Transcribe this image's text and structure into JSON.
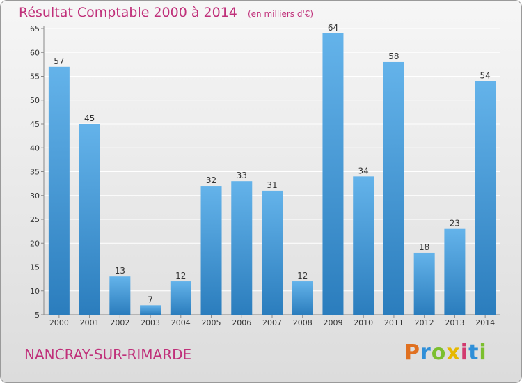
{
  "header": {
    "title": "Résultat Comptable 2000 à 2014",
    "unit": "(en milliers d'€)"
  },
  "footer": {
    "place": "NANCRAY-SUR-RIMARDE",
    "logo_text": "Proxiti"
  },
  "colors": {
    "title": "#c0307a",
    "bar_light": "#64b3ea",
    "bar_dark": "#2b7dbd",
    "grid": "#ffffff"
  },
  "chart_data": {
    "type": "bar",
    "title": "Résultat Comptable 2000 à 2014",
    "subtitle": "(en milliers d'€)",
    "xlabel": "",
    "ylabel": "",
    "categories": [
      "2000",
      "2001",
      "2002",
      "2003",
      "2004",
      "2005",
      "2006",
      "2007",
      "2008",
      "2009",
      "2010",
      "2011",
      "2012",
      "2013",
      "2014"
    ],
    "values": [
      57,
      45,
      13,
      7,
      12,
      32,
      33,
      31,
      12,
      64,
      34,
      58,
      18,
      23,
      54
    ],
    "ylim": [
      5,
      65
    ],
    "yticks": [
      5,
      10,
      15,
      20,
      25,
      30,
      35,
      40,
      45,
      50,
      55,
      60,
      65
    ],
    "grid": true,
    "legend": "none"
  }
}
